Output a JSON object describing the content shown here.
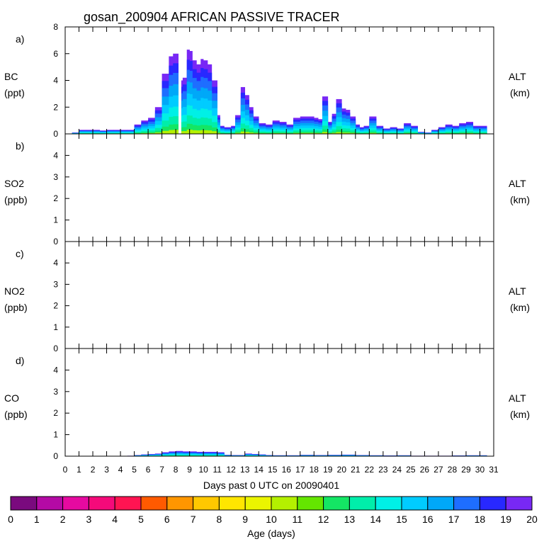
{
  "chart_data": {
    "type": "area",
    "title": "gosan_200904 AFRICAN PASSIVE TRACER",
    "xlabel": "Days past 0 UTC on 20090401",
    "x_ticks": [
      "0",
      "1",
      "2",
      "3",
      "4",
      "5",
      "6",
      "7",
      "8",
      "9",
      "10",
      "11",
      "12",
      "13",
      "14",
      "15",
      "16",
      "17",
      "18",
      "19",
      "20",
      "21",
      "22",
      "23",
      "24",
      "25",
      "26",
      "27",
      "28",
      "29",
      "30",
      "31"
    ],
    "xlim": [
      0,
      31
    ],
    "panels": [
      {
        "letter": "a)",
        "species": "BC",
        "unit": "(ppt)",
        "right_label": "ALT",
        "right_unit": "(km)",
        "ylim": [
          0,
          8
        ],
        "yticks": [
          "0",
          "2",
          "4",
          "6",
          "8"
        ],
        "x": [
          0.5,
          1,
          1.5,
          2,
          2.5,
          3,
          3.5,
          4,
          4.5,
          5,
          5.5,
          6,
          6.5,
          7,
          7.5,
          7.8,
          8,
          8.2,
          8.5,
          8.8,
          9,
          9.2,
          9.5,
          9.8,
          10,
          10.3,
          10.6,
          11,
          11.2,
          11.5,
          12,
          12.3,
          12.7,
          13,
          13.3,
          13.6,
          14,
          14.5,
          15,
          15.5,
          16,
          16.5,
          17,
          17.5,
          18,
          18.3,
          18.6,
          19,
          19.3,
          19.6,
          20,
          20.3,
          20.6,
          21,
          21.3,
          21.6,
          22,
          22.5,
          23,
          23.5,
          24,
          24.5,
          25,
          25.5,
          26,
          26.5,
          27,
          27.5,
          28,
          28.5,
          29,
          29.5,
          30
        ],
        "total": [
          0.1,
          0.3,
          0.3,
          0.3,
          0.25,
          0.3,
          0.3,
          0.3,
          0.3,
          0.7,
          1,
          1.2,
          2,
          4.5,
          5.8,
          6,
          6,
          4,
          4.2,
          6.3,
          6.2,
          5.5,
          5.2,
          5.6,
          5.5,
          5.2,
          4,
          1.4,
          0.6,
          0.5,
          0.6,
          1.4,
          3.5,
          2.9,
          2,
          1.3,
          0.8,
          0.7,
          1,
          0.9,
          0.7,
          1.2,
          1.3,
          1.3,
          1.2,
          1.1,
          2.8,
          0.9,
          1.5,
          2.6,
          1.9,
          1.8,
          1.3,
          0.7,
          0.5,
          0.6,
          1.3,
          0.6,
          0.4,
          0.5,
          0.4,
          0.8,
          0.6,
          0.15,
          0.1,
          0.3,
          0.5,
          0.7,
          0.6,
          0.8,
          0.9,
          0.6,
          0.6
        ],
        "breaks": [
          [
            8.2,
            8.4
          ]
        ]
      },
      {
        "letter": "b)",
        "species": "SO2",
        "unit": "(ppb)",
        "right_label": "ALT",
        "right_unit": "(km)",
        "ylim": [
          0,
          5
        ],
        "yticks": [
          "0",
          "1",
          "2",
          "3",
          "4"
        ],
        "x": [],
        "total": []
      },
      {
        "letter": "c)",
        "species": "NO2",
        "unit": "(ppb)",
        "right_label": "ALT",
        "right_unit": "(km)",
        "ylim": [
          0,
          5
        ],
        "yticks": [
          "0",
          "1",
          "2",
          "3",
          "4"
        ],
        "x": [],
        "total": []
      },
      {
        "letter": "d)",
        "species": "CO",
        "unit": "(ppb)",
        "right_label": "ALT",
        "right_unit": "(km)",
        "ylim": [
          0,
          5
        ],
        "yticks": [
          "0",
          "1",
          "2",
          "3",
          "4"
        ],
        "x": [
          4.5,
          5,
          5.5,
          6,
          6.5,
          7,
          7.5,
          8,
          8.5,
          9,
          9.5,
          10,
          10.5,
          11,
          11.5,
          12,
          12.5,
          13,
          13.5,
          14,
          14.5,
          15,
          16,
          17,
          18,
          19,
          20,
          21,
          22,
          23,
          24,
          25,
          26,
          27,
          28,
          29,
          30
        ],
        "total": [
          0.02,
          0.05,
          0.08,
          0.1,
          0.12,
          0.18,
          0.22,
          0.24,
          0.22,
          0.22,
          0.2,
          0.2,
          0.2,
          0.18,
          0.06,
          0.05,
          0.05,
          0.12,
          0.1,
          0.08,
          0.05,
          0.04,
          0.04,
          0.06,
          0.05,
          0.06,
          0.07,
          0.05,
          0.04,
          0.03,
          0.04,
          0.02,
          0.02,
          0.02,
          0.03,
          0.04,
          0.04
        ]
      }
    ],
    "colorbar": {
      "label": "Age (days)",
      "ticks": [
        "0",
        "1",
        "2",
        "3",
        "4",
        "5",
        "6",
        "7",
        "8",
        "9",
        "10",
        "11",
        "12",
        "13",
        "14",
        "15",
        "16",
        "17",
        "18",
        "19",
        "20"
      ],
      "colors": [
        "#7a0a7e",
        "#b40aa5",
        "#e60aa0",
        "#f50a7a",
        "#ff1452",
        "#ff5a00",
        "#ff9600",
        "#ffc800",
        "#ffe600",
        "#ebf500",
        "#b4f000",
        "#64e600",
        "#14e664",
        "#00eeaa",
        "#00f0e6",
        "#00ccff",
        "#00a8f8",
        "#1e6eff",
        "#2828ff",
        "#7828f5"
      ]
    }
  }
}
